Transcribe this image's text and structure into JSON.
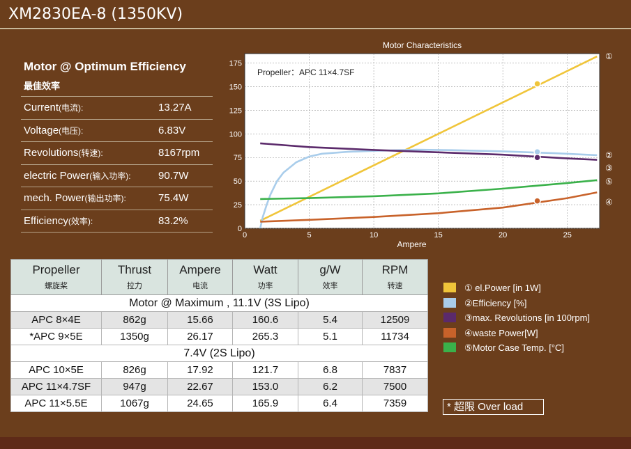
{
  "title": "XM2830EA-8 (1350KV)",
  "spec": {
    "heading": "Motor @ Optimum Efficiency",
    "subheading": "最佳效率",
    "rows": [
      {
        "label": "Current",
        "label_zh": "(电流):",
        "value": "13.27A"
      },
      {
        "label": "Voltage",
        "label_zh": "(电压):",
        "value": "6.83V"
      },
      {
        "label": "Revolutions",
        "label_zh": "(转速):",
        "value": "8167rpm"
      },
      {
        "label": "electric Power",
        "label_zh": "(输入功率):",
        "value": "90.7W"
      },
      {
        "label": "mech. Power",
        "label_zh": "(输出功率):",
        "value": "75.4W"
      },
      {
        "label": "Efficiency",
        "label_zh": "(效率):",
        "value": "83.2%"
      }
    ]
  },
  "chart_data": {
    "type": "line",
    "title": "Motor Characteristics",
    "xlabel": "Ampere",
    "ylabel": "",
    "xlim": [
      0,
      27.5
    ],
    "ylim": [
      0,
      185
    ],
    "x_ticks": [
      0,
      5,
      10,
      15,
      20,
      25
    ],
    "y_ticks": [
      0,
      25,
      50,
      75,
      100,
      125,
      150,
      175
    ],
    "grid": true,
    "annotation": "Propeller：APC 11×4.7SF",
    "marker_x": 22.67,
    "series": [
      {
        "name": "① el.Power [in 1W]",
        "tag": "①",
        "color": "#f0c53a",
        "x": [
          1.2,
          27.3
        ],
        "y": [
          8,
          182
        ],
        "marker_y": 153
      },
      {
        "name": "②Efficiency [%]",
        "tag": "②",
        "color": "#a9cdeb",
        "x": [
          1.2,
          1.4,
          1.7,
          2.0,
          2.5,
          3.0,
          4.0,
          5.0,
          6.0,
          8.0,
          10.0,
          13.3,
          16.0,
          20.0,
          24.0,
          27.3
        ],
        "y": [
          0,
          12,
          25,
          36,
          50,
          59,
          70,
          76,
          79,
          81,
          82,
          83.2,
          82.8,
          81.5,
          79.5,
          77.5
        ],
        "marker_y": 81
      },
      {
        "name": "③max. Revolutions [in 100rpm]",
        "tag": "③",
        "color": "#5b2a6b",
        "x": [
          1.2,
          5,
          10,
          15,
          20,
          25,
          27.3
        ],
        "y": [
          90,
          86,
          83,
          80.5,
          78,
          74,
          72.5
        ],
        "marker_y": 75
      },
      {
        "name": "④waste Power[W]",
        "tag": "④",
        "color": "#c8622a",
        "x": [
          1.2,
          5,
          10,
          15,
          20,
          25,
          27.3
        ],
        "y": [
          7,
          9,
          12,
          16,
          22,
          32,
          38
        ],
        "marker_y": 29
      },
      {
        "name": "⑤Motor Case Temp. [°C]",
        "tag": "⑤",
        "color": "#3ab14a",
        "x": [
          1.2,
          5,
          10,
          15,
          20,
          25,
          27.3
        ],
        "y": [
          31,
          32,
          34,
          37,
          42,
          48,
          51
        ]
      }
    ]
  },
  "table": {
    "headers": [
      {
        "en": "Propeller",
        "zh": "螺旋桨"
      },
      {
        "en": "Thrust",
        "zh": "拉力"
      },
      {
        "en": "Ampere",
        "zh": "电流"
      },
      {
        "en": "Watt",
        "zh": "功率"
      },
      {
        "en": "g/W",
        "zh": "效率"
      },
      {
        "en": "RPM",
        "zh": "转速"
      }
    ],
    "section1": "Motor @ Maximum , 11.1V (3S Lipo)",
    "rows1": [
      [
        "APC 8×4E",
        "862g",
        "15.66",
        "160.6",
        "5.4",
        "12509"
      ],
      [
        "*APC 9×5E",
        "1350g",
        "26.17",
        "265.3",
        "5.1",
        "11734"
      ]
    ],
    "section2": "7.4V (2S Lipo)",
    "rows2": [
      [
        "APC 10×5E",
        "826g",
        "17.92",
        "121.7",
        "6.8",
        "7837"
      ],
      [
        "APC 11×4.7SF",
        "947g",
        "22.67",
        "153.0",
        "6.2",
        "7500"
      ],
      [
        "APC 11×5.5E",
        "1067g",
        "24.65",
        "165.9",
        "6.4",
        "7359"
      ]
    ]
  },
  "legend": [
    {
      "label": "① el.Power [in 1W]",
      "color": "#f0c53a"
    },
    {
      "label": "②Efficiency [%]",
      "color": "#a9cdeb"
    },
    {
      "label": "③max. Revolutions [in 100rpm]",
      "color": "#5b2a6b"
    },
    {
      "label": "④waste Power[W]",
      "color": "#c8622a"
    },
    {
      "label": "⑤Motor Case Temp. [°C]",
      "color": "#3ab14a"
    }
  ],
  "overload_note": "* 超限 Over load"
}
